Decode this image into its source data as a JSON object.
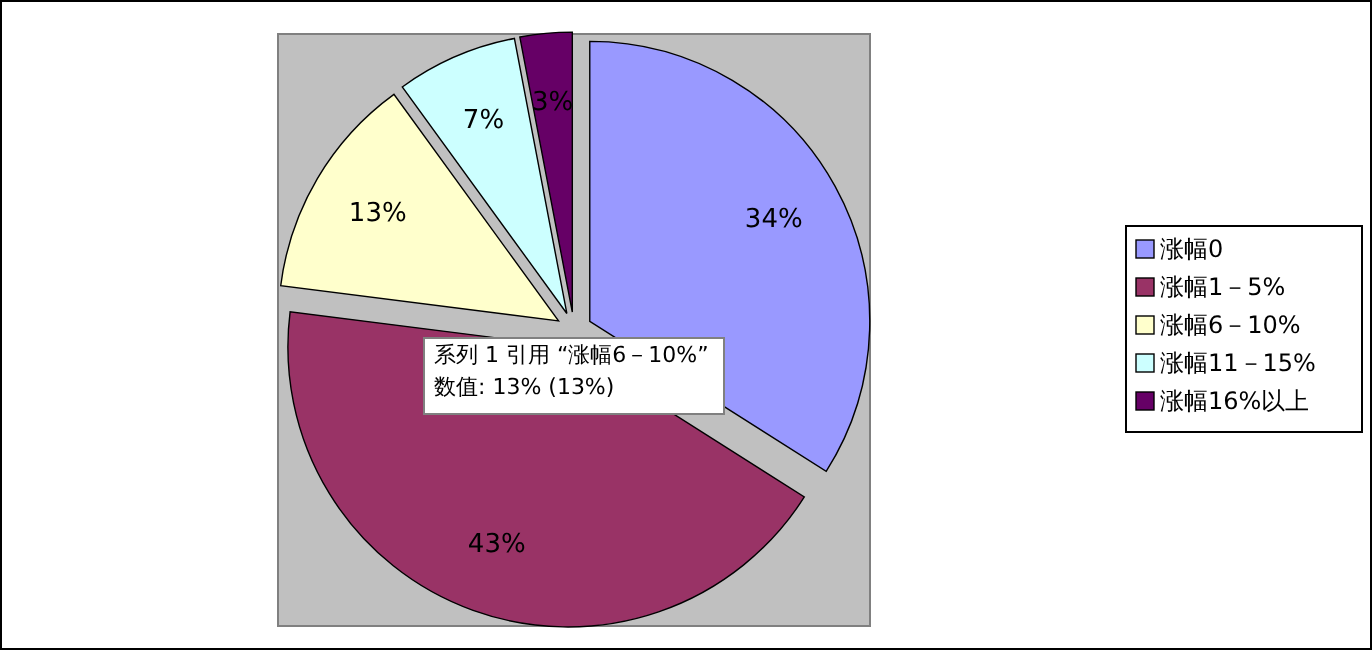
{
  "chart_data": {
    "type": "pie",
    "categories": [
      "涨幅0",
      "涨幅1－5%",
      "涨幅6－10%",
      "涨幅11－15%",
      "涨幅16%以上"
    ],
    "values": [
      34,
      43,
      13,
      7,
      3
    ],
    "colors": [
      "#9999ff",
      "#993366",
      "#ffffcc",
      "#ccffff",
      "#660066"
    ],
    "value_labels": [
      "34%",
      "43%",
      "13%",
      "7%",
      "3%"
    ],
    "legend": "right",
    "annotations": [
      "系列 1 引用 “涨幅6－10%”",
      "数值: 13% (13%)"
    ]
  }
}
